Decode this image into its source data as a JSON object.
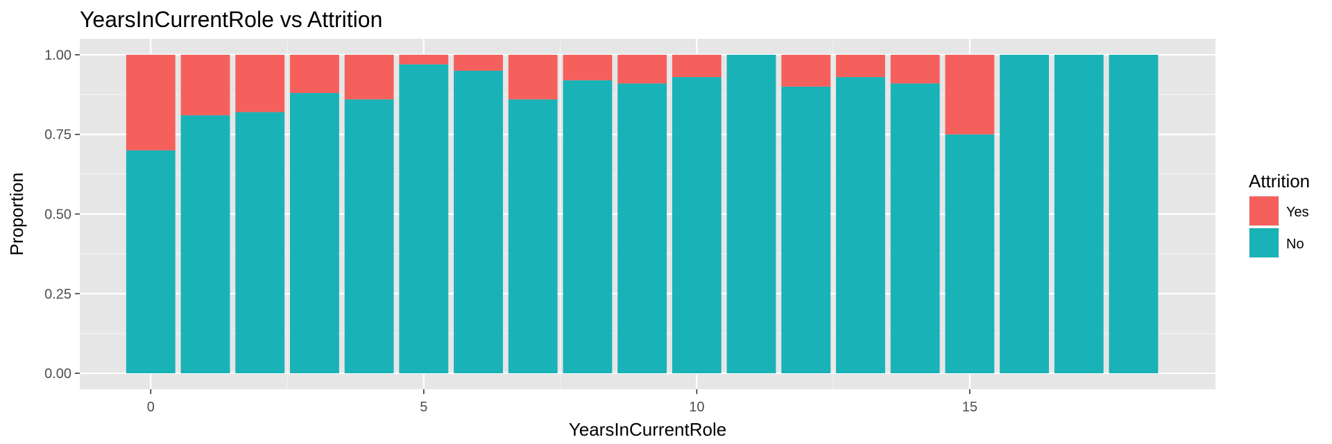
{
  "chart_data": {
    "type": "bar",
    "stacked": true,
    "normalized": true,
    "title": "YearsInCurrentRole vs Attrition",
    "xlabel": "YearsInCurrentRole",
    "ylabel": "Proportion",
    "x": [
      0,
      1,
      2,
      3,
      4,
      5,
      6,
      7,
      8,
      9,
      10,
      11,
      12,
      13,
      14,
      15,
      16,
      17,
      18
    ],
    "xlim": [
      -1.3,
      19.5
    ],
    "ylim": [
      -0.05,
      1.05
    ],
    "x_ticks": [
      0,
      5,
      10,
      15
    ],
    "x_tick_labels": [
      "0",
      "5",
      "10",
      "15"
    ],
    "y_ticks": [
      0,
      0.25,
      0.5,
      0.75,
      1
    ],
    "y_tick_labels": [
      "0.00",
      "0.25",
      "0.50",
      "0.75",
      "1.00"
    ],
    "series": [
      {
        "name": "No",
        "color": "#19B2B7",
        "values": [
          0.7,
          0.81,
          0.82,
          0.88,
          0.86,
          0.97,
          0.95,
          0.86,
          0.92,
          0.91,
          0.93,
          1.0,
          0.9,
          0.93,
          0.91,
          0.75,
          1.0,
          1.0,
          1.0
        ]
      },
      {
        "name": "Yes",
        "color": "#F5605D",
        "values": [
          0.3,
          0.19,
          0.18,
          0.12,
          0.14,
          0.03,
          0.05,
          0.14,
          0.08,
          0.09,
          0.07,
          0.0,
          0.1,
          0.07,
          0.09,
          0.25,
          0.0,
          0.0,
          0.0
        ]
      }
    ],
    "legend": {
      "title": "Attrition",
      "placement": "right",
      "order": [
        "Yes",
        "No"
      ]
    },
    "grid": true,
    "panel_background": "#E6E6E6"
  }
}
